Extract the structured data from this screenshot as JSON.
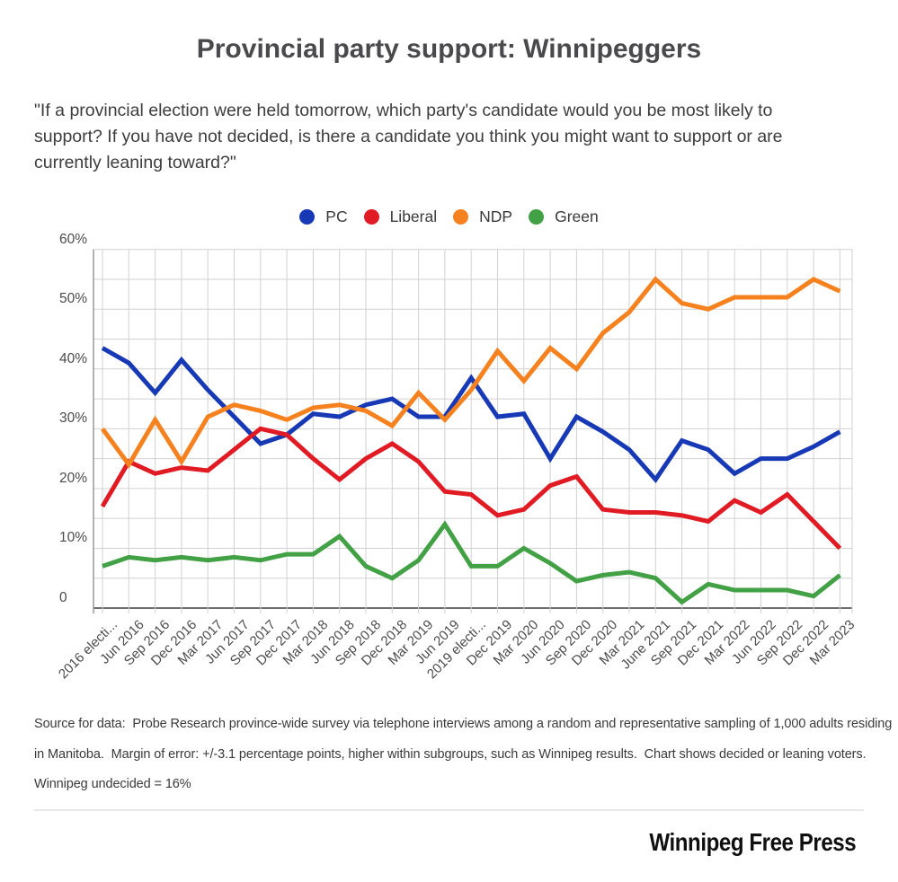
{
  "page": {
    "title": "Provincial party support: Winnipeggers",
    "question_lines": [
      "\"If a provincial election were held tomorrow, which party's candidate would you be most likely to",
      "support? If you have not decided, is there a candidate you think you might want to support or are",
      "currently leaning toward?\""
    ],
    "source_lines": [
      "Source for data:  Probe Research province-wide survey via telephone interviews among a random and representative sampling of 1,000 adults residing",
      "in Manitoba.  Margin of error: +/-3.1 percentage points, higher within subgroups, such as Winnipeg results.  Chart shows decided or leaning voters.",
      "Winnipeg undecided = 16%"
    ],
    "logo_text": "Winnipeg Free Press"
  },
  "chart_data": {
    "type": "line",
    "title": "Provincial party support: Winnipeggers",
    "xlabel": "",
    "ylabel": "",
    "ylim": [
      0,
      60
    ],
    "grid": true,
    "grid_interval": 5,
    "legend_position": "top",
    "x_label_rotation": -45,
    "y_ticks": [
      {
        "label": "60%",
        "value": 60
      },
      {
        "label": "50%",
        "value": 50
      },
      {
        "label": "40%",
        "value": 40
      },
      {
        "label": "30%",
        "value": 30
      },
      {
        "label": "20%",
        "value": 20
      },
      {
        "label": "10%",
        "value": 10
      },
      {
        "label": "0",
        "value": 0
      }
    ],
    "x": [
      "2016 electi...",
      "Jun 2016",
      "Sep 2016",
      "Dec 2016",
      "Mar 2017",
      "Jun 2017",
      "Sep 2017",
      "Dec 2017",
      "Mar 2018",
      "Jun 2018",
      "Sep 2018",
      "Dec 2018",
      "Mar 2019",
      "Jun 2019",
      "2019 electi...",
      "Dec 2019",
      "Mar 2020",
      "Jun 2020",
      "Sep 2020",
      "Dec 2020",
      "Mar 2021",
      "June 2021",
      "Sep 2021",
      "Dec 2021",
      "Mar 2022",
      "Jun 2022",
      "Sep 2022",
      "Dec 2022",
      "Mar 2023"
    ],
    "series": [
      {
        "name": "PC",
        "color": "#1739b5",
        "values": [
          43.5,
          41,
          36,
          41.5,
          36.5,
          32,
          27.5,
          29,
          32.5,
          32,
          34,
          35,
          32,
          32,
          38.5,
          32,
          32.5,
          25,
          32,
          29.5,
          26.5,
          21.5,
          28,
          26.5,
          22.5,
          25,
          25,
          27,
          29.5
        ]
      },
      {
        "name": "Liberal",
        "color": "#e01b24",
        "values": [
          17,
          24.5,
          22.5,
          23.5,
          23,
          26.5,
          30,
          29,
          25,
          21.5,
          25,
          27.5,
          24.5,
          19.5,
          19,
          15.5,
          16.5,
          20.5,
          22,
          16.5,
          16,
          16,
          15.5,
          14.5,
          18,
          16,
          19,
          14.5,
          10
        ]
      },
      {
        "name": "NDP",
        "color": "#f6821f",
        "values": [
          30,
          24,
          31.5,
          24.5,
          32,
          34,
          33,
          31.5,
          33.5,
          34,
          33,
          30.5,
          36,
          31.5,
          36.5,
          43,
          38,
          43.5,
          40,
          46,
          49.5,
          55,
          51,
          50,
          52,
          52,
          52,
          55,
          53
        ]
      },
      {
        "name": "Green",
        "color": "#42a045",
        "values": [
          7,
          8.5,
          8,
          8.5,
          8,
          8.5,
          8,
          9,
          9,
          12,
          7,
          5,
          8,
          14,
          7,
          7,
          10,
          7.5,
          4.5,
          5.5,
          6,
          5,
          1,
          4,
          3,
          3,
          3,
          2,
          5.5
        ]
      }
    ]
  }
}
